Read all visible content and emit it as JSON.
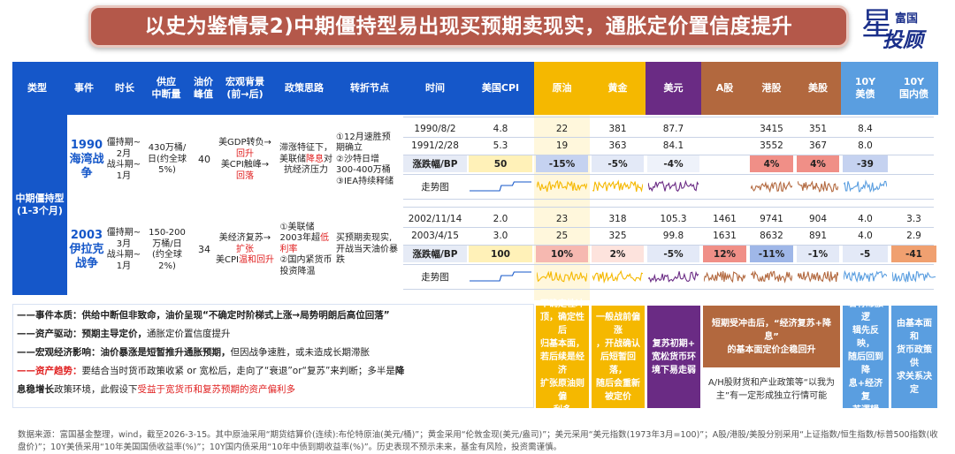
{
  "title": "以史为鉴情景2)中期僵持型易出现买预期卖现实，通胀定价置信度提升",
  "logo": {
    "line1": "富国",
    "line2": "投顾",
    "star": "星"
  },
  "headers": {
    "type": "类型",
    "event": "事件",
    "duration": "时长",
    "supply": "供应\n中断量",
    "oil_peak": "油价\n峰值",
    "macro": "宏观背景\n(前→后)",
    "policy": "政策思路",
    "turning": "转折节点",
    "date": "时间",
    "us_cpi": "美国CPI",
    "oil": "原油",
    "gold": "黄金",
    "usd": "美元",
    "a_share": "A股",
    "hk": "港股",
    "us_stock": "美股",
    "us10y": "10Y\n美债",
    "cn10y": "10Y\n国内债"
  },
  "category": "中期僵持型\n(1-3个月)",
  "events": [
    {
      "name": "1990\n海湾战\n争",
      "duration": "僵持期~\n2月\n战斗期~\n1月",
      "supply": "430万桶/\n日(约全球\n5%)",
      "oil_peak": "40",
      "macro_pre": "美GDP转负→",
      "macro_pre_red": "回升",
      "macro_post": "美CPI触峰→",
      "macro_post_red": "回落",
      "policy_a": "滞涨特征下，\n美联储",
      "policy_red": "降息",
      "policy_b": "对\n抗经济压力",
      "turning": "①12月速胜预\n期确立\n②沙特日增\n300-400万桶\n③IEA持续释储",
      "rows": [
        {
          "date": "1990/8/2",
          "cpi": "4.8",
          "oil": "22",
          "gold": "381",
          "usd": "87.7",
          "a": "",
          "hk": "3415",
          "us": "351",
          "us10y": "8.4",
          "cn10y": ""
        },
        {
          "date": "1991/2/28",
          "cpi": "5.3",
          "oil": "19",
          "gold": "363",
          "usd": "84.1",
          "a": "",
          "hk": "3552",
          "us": "367",
          "us10y": "8.0",
          "cn10y": ""
        }
      ],
      "change_label": "涨跌幅/BP",
      "change": {
        "cpi": "50",
        "oil": "-15%",
        "gold": "-5%",
        "usd": "-4%",
        "a": "",
        "hk": "4%",
        "us": "4%",
        "us10y": "-39",
        "cn10y": ""
      },
      "trend_label": "走势图"
    },
    {
      "name": "2003\n伊拉克\n战争",
      "duration": "僵持期~\n3月\n战斗期~\n1月",
      "supply": "150-200\n万桶/日\n(约全球\n2%)",
      "oil_peak": "34",
      "macro_pre": "美经济复苏→",
      "macro_pre_red": "扩张",
      "macro_post": "美CPI",
      "macro_post_red": "温和回升",
      "policy_a": "①美联储\n2003年超",
      "policy_red": "低\n利率",
      "policy_b": "\n②国内紧货币\n投资降温",
      "turning": "买预期卖现实,\n开战当天油价暴\n跌",
      "rows": [
        {
          "date": "2002/11/14",
          "cpi": "2.0",
          "oil": "23",
          "gold": "318",
          "usd": "105.3",
          "a": "1461",
          "hk": "9741",
          "us": "904",
          "us10y": "4.0",
          "cn10y": "3.3"
        },
        {
          "date": "2003/4/15",
          "cpi": "3.0",
          "oil": "25",
          "gold": "325",
          "usd": "99.8",
          "a": "1631",
          "hk": "8632",
          "us": "891",
          "us10y": "4.0",
          "cn10y": "2.9"
        }
      ],
      "change_label": "涨跌幅/BP",
      "change": {
        "cpi": "100",
        "oil": "10%",
        "gold": "2%",
        "usd": "-5%",
        "a": "12%",
        "hk": "-11%",
        "us": "-1%",
        "us10y": "-5",
        "cn10y": "-41"
      },
      "trend_label": "走势图"
    }
  ],
  "notes": {
    "l1": "——事件本质：供给中断但非致命，油价呈现“不确定时阶梯式上涨→局势明朗后高位回落”",
    "l2a": "——资产驱动：预期主导定价，",
    "l2b": "通胀定价置信度提升",
    "l3a": "——宏观经济影响：油价暴涨是短暂推升通胀预期，",
    "l3b": "但因战争速胜，或未造成长期滞胀",
    "l4a": "——资产趋势：",
    "l4b": "要结合当时货币政策收紧 or 宽松后，走向了“衰退”or“复苏”来判断；多半是",
    "l4c": "降",
    "l5a": "息",
    "l5b": "稳增长",
    "l5c": "政策环境，此假设下",
    "l5d": "受益于宽货币和复苏预期的资产偏利多"
  },
  "panels": {
    "oil": "不确定性冲\n顶，确定性后\n归基本面，\n若后续是经济\n扩张原油则偏\n利多",
    "gold": "一般战前偏涨\n，开战确认\n后短暂回落，\n随后会重新\n被定价",
    "usd": "复苏初期+\n宽松货币环\n境下易走弱",
    "equity_top": "短期受冲击后，“经济复苏+降息”\n的基本面定价企稳回升",
    "equity_bottom": "A/H股财货和产业政策等“以我为\n主”有一定形成独立行情可能",
    "us10y": "若有滞胀逻\n辑先反映，\n随后回到降\n息+经济复\n苏逻辑",
    "cn10y": "由基本面和\n货币政策供\n求关系决定"
  },
  "footnote": "数据来源：富国基金整理，wind，截至2026-3-15。其中原油采用“期货结算价(连续):布伦特原油(美元/桶)”；黄金采用“伦敦金现(美元/盎司)”；美元采用“美元指数(1973年3月=100)”；A股/港股/美股分别采用“上证指数/恒生指数/标普500指数(收盘价)”；10Y美债采用“10年美国国债收益率(%)”；10Y国内债采用“10年中债到期收益率(%)”。历史表现不预示未来，基金有风险，投资需谨慎。",
  "colors": {
    "header_blue": "#1557c9",
    "oil": "#f5b800",
    "usd": "#6a2b84",
    "equity": "#b2683e",
    "bond": "#5a9ee0",
    "red_cell": "#f0908a",
    "blue_cell": "#9fb7e8"
  }
}
